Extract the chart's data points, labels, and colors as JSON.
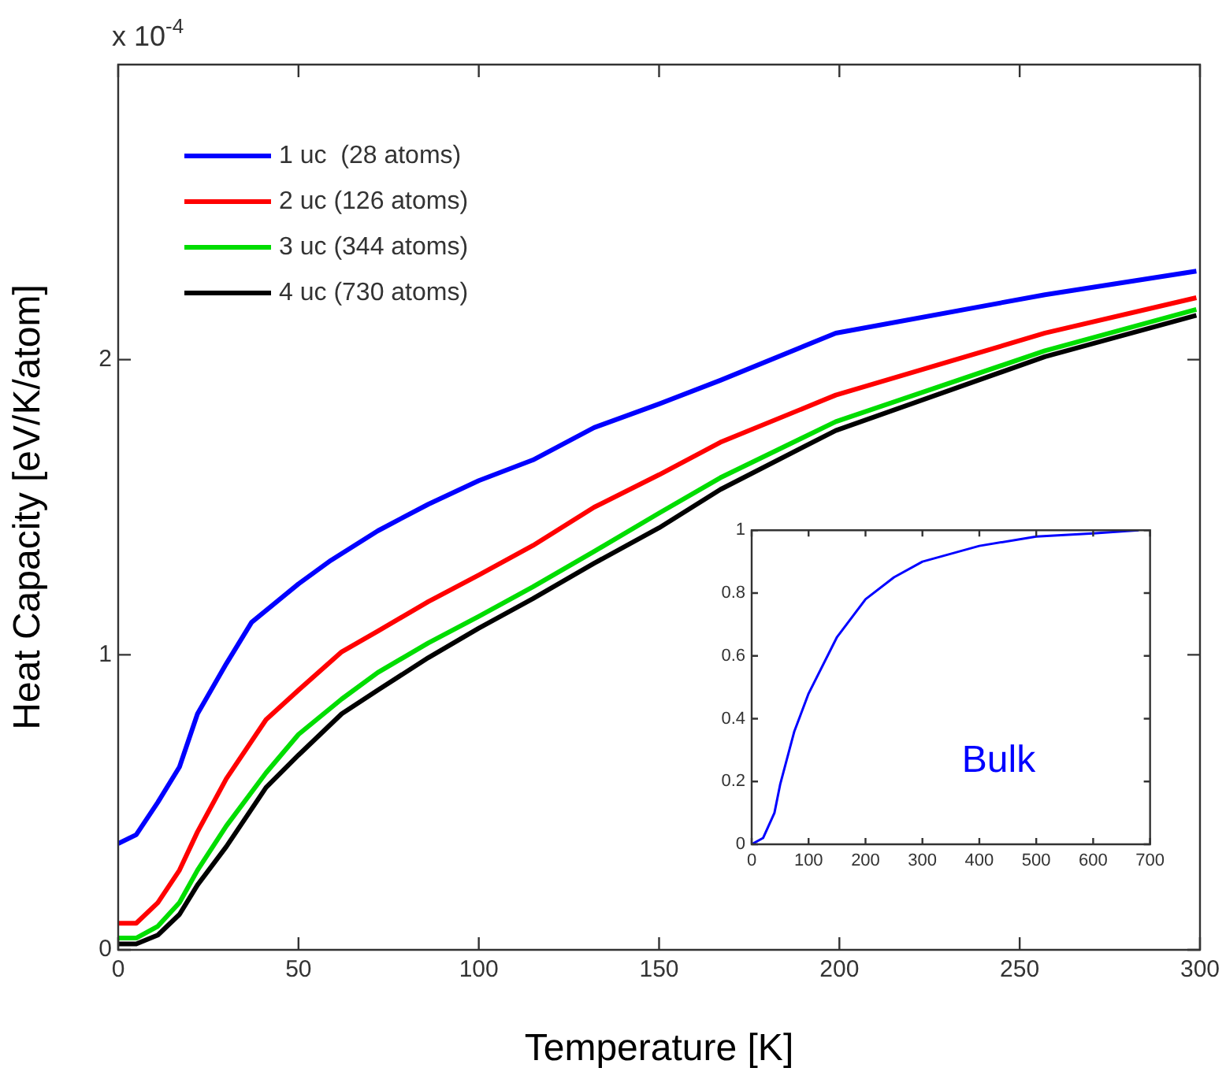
{
  "chart_data": [
    {
      "type": "line",
      "xlabel": "Temperature [K]",
      "ylabel": "Heat Capacity [eV/K/atom]",
      "annotations": [
        "x 10$^{-4}$"
      ],
      "xlim": [
        0,
        300
      ],
      "xticks": [
        0,
        50,
        100,
        150,
        200,
        250,
        300
      ],
      "ylim": [
        0,
        3
      ],
      "yticks": [
        0,
        1,
        2
      ],
      "legend": "top left",
      "grid": false,
      "series": [
        {
          "name": "1 uc  (28 atoms)",
          "color": "#0000ff",
          "x": [
            0,
            5,
            11,
            17,
            22,
            30,
            37,
            50,
            59,
            72,
            86,
            100,
            115,
            132,
            150,
            167,
            199,
            257,
            299
          ],
          "values": [
            0.36,
            0.39,
            0.5,
            0.62,
            0.8,
            0.97,
            1.11,
            1.24,
            1.32,
            1.42,
            1.51,
            1.59,
            1.66,
            1.77,
            1.85,
            1.93,
            2.09,
            2.22,
            2.3
          ]
        },
        {
          "name": "2 uc (126 atoms)",
          "color": "#ff0000",
          "x": [
            0,
            5,
            11,
            17,
            22,
            30,
            41,
            50,
            62,
            72,
            86,
            100,
            115,
            132,
            150,
            167,
            199,
            257,
            299
          ],
          "values": [
            0.09,
            0.09,
            0.16,
            0.27,
            0.4,
            0.58,
            0.78,
            0.88,
            1.01,
            1.08,
            1.18,
            1.27,
            1.37,
            1.5,
            1.61,
            1.72,
            1.88,
            2.09,
            2.21
          ]
        },
        {
          "name": "3 uc (344 atoms)",
          "color": "#00dd00",
          "x": [
            0,
            5,
            11,
            17,
            22,
            30,
            41,
            50,
            62,
            72,
            86,
            100,
            115,
            132,
            150,
            167,
            199,
            257,
            299
          ],
          "values": [
            0.04,
            0.04,
            0.08,
            0.16,
            0.27,
            0.42,
            0.6,
            0.73,
            0.85,
            0.94,
            1.04,
            1.13,
            1.23,
            1.35,
            1.48,
            1.6,
            1.79,
            2.03,
            2.17
          ]
        },
        {
          "name": "4 uc (730 atoms)",
          "color": "#000000",
          "x": [
            0,
            5,
            11,
            17,
            22,
            30,
            41,
            50,
            62,
            72,
            86,
            100,
            115,
            132,
            150,
            167,
            199,
            257,
            299
          ],
          "values": [
            0.02,
            0.02,
            0.05,
            0.12,
            0.22,
            0.35,
            0.55,
            0.66,
            0.8,
            0.88,
            0.99,
            1.09,
            1.19,
            1.31,
            1.43,
            1.56,
            1.76,
            2.01,
            2.15
          ]
        }
      ]
    },
    {
      "type": "line",
      "annotations": [
        "Bulk"
      ],
      "xlim": [
        0,
        700
      ],
      "xticks": [
        0,
        100,
        200,
        300,
        400,
        500,
        600,
        700
      ],
      "ylim": [
        0,
        1
      ],
      "yticks": [
        0,
        0.2,
        0.4,
        0.6,
        0.8,
        1
      ],
      "grid": false,
      "series": [
        {
          "color": "#0000ff",
          "x": [
            0,
            20,
            40,
            50,
            75,
            100,
            150,
            200,
            250,
            300,
            400,
            500,
            600,
            680
          ],
          "values": [
            0,
            0.02,
            0.1,
            0.19,
            0.36,
            0.48,
            0.66,
            0.78,
            0.85,
            0.9,
            0.95,
            0.98,
            0.99,
            1.0
          ]
        }
      ]
    }
  ]
}
